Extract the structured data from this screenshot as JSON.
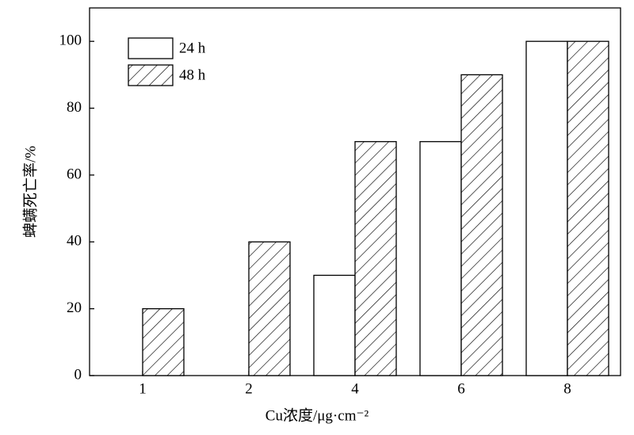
{
  "chart_data": {
    "type": "bar",
    "categories": [
      "1",
      "2",
      "4",
      "6",
      "8"
    ],
    "series": [
      {
        "name": "24 h",
        "color": "#ffffff",
        "hatch": false,
        "values": [
          0,
          0,
          30,
          70,
          100
        ]
      },
      {
        "name": "48 h",
        "color": "#ffffff",
        "hatch": true,
        "values": [
          20,
          40,
          70,
          90,
          100
        ]
      }
    ],
    "xlabel": "Cu浓度/μg·cm⁻²",
    "ylabel": "蜱螨死亡率/%",
    "ylim": [
      0,
      110
    ],
    "yticks": [
      0,
      20,
      40,
      60,
      80,
      100
    ],
    "legend": "upper-left",
    "grid": false
  }
}
